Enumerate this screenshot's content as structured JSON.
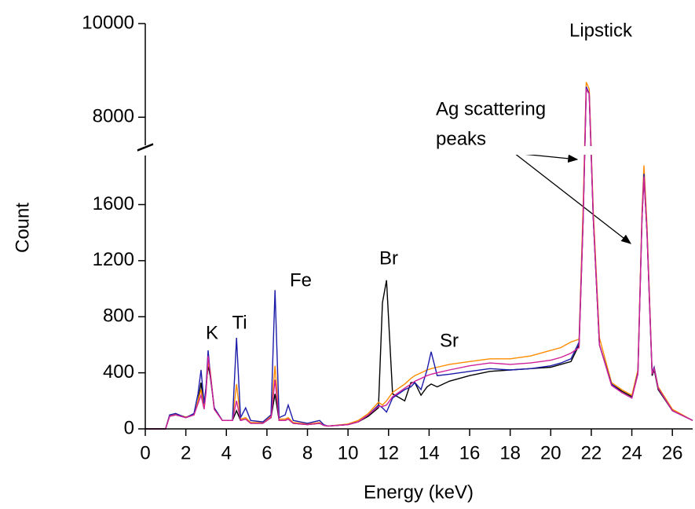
{
  "chart_data": {
    "type": "line",
    "title": "Lipstick",
    "x_label": "Energy (keV)",
    "y_label": "Count",
    "xlim": [
      0,
      27
    ],
    "xticks": [
      0,
      2,
      4,
      6,
      8,
      10,
      12,
      14,
      16,
      18,
      20,
      22,
      24,
      26
    ],
    "ylim": [
      0,
      10000
    ],
    "ybreak": [
      1950,
      7400
    ],
    "yticks": [
      0,
      400,
      800,
      1200,
      1600,
      8000,
      10000
    ],
    "annotations": [
      "K",
      "Ti",
      "Fe",
      "Br",
      "Sr",
      "Ag scattering",
      "peaks"
    ],
    "x": [
      0,
      1,
      1.2,
      1.5,
      2,
      2.4,
      2.6,
      2.75,
      2.9,
      3.0,
      3.1,
      3.2,
      3.4,
      3.8,
      4.3,
      4.5,
      4.7,
      4.95,
      5.2,
      5.8,
      6.2,
      6.4,
      6.6,
      6.9,
      7.05,
      7.3,
      8,
      8.6,
      8.8,
      9,
      10,
      10.5,
      11,
      11.5,
      11.7,
      11.9,
      12.2,
      12.8,
      13.1,
      13.3,
      13.6,
      13.9,
      14.1,
      14.4,
      15,
      16,
      17,
      18,
      19,
      20,
      20.5,
      21,
      21.4,
      21.6,
      21.75,
      21.9,
      22.1,
      22.4,
      23,
      23.5,
      24,
      24.3,
      24.5,
      24.6,
      24.75,
      25,
      25.1,
      25.3,
      26,
      27
    ],
    "series": [
      {
        "color": "#000000",
        "values": [
          0,
          0,
          90,
          100,
          80,
          100,
          200,
          330,
          150,
          300,
          450,
          380,
          150,
          60,
          60,
          130,
          60,
          70,
          40,
          40,
          80,
          250,
          60,
          60,
          70,
          40,
          30,
          40,
          25,
          20,
          30,
          50,
          90,
          150,
          900,
          1060,
          250,
          200,
          330,
          330,
          240,
          300,
          320,
          300,
          340,
          380,
          410,
          420,
          430,
          440,
          460,
          480,
          600,
          1500,
          8600,
          8500,
          1500,
          600,
          320,
          270,
          230,
          400,
          1500,
          1800,
          1400,
          380,
          420,
          280,
          130,
          60
        ]
      },
      {
        "color": "#ff8c00",
        "values": [
          0,
          0,
          95,
          105,
          85,
          100,
          200,
          280,
          150,
          280,
          470,
          420,
          140,
          60,
          60,
          320,
          70,
          80,
          45,
          45,
          90,
          450,
          70,
          70,
          80,
          45,
          35,
          45,
          25,
          20,
          35,
          60,
          110,
          190,
          170,
          200,
          260,
          320,
          360,
          380,
          400,
          420,
          430,
          440,
          460,
          480,
          500,
          500,
          520,
          560,
          580,
          620,
          640,
          1600,
          8750,
          8600,
          1550,
          650,
          330,
          280,
          240,
          420,
          1550,
          1880,
          1450,
          400,
          440,
          300,
          140,
          60
        ]
      },
      {
        "color": "#1c1caa",
        "values": [
          0,
          0,
          100,
          110,
          80,
          110,
          250,
          420,
          180,
          300,
          560,
          400,
          150,
          60,
          60,
          650,
          80,
          150,
          60,
          50,
          100,
          990,
          80,
          100,
          170,
          60,
          40,
          60,
          30,
          20,
          30,
          50,
          100,
          170,
          150,
          120,
          220,
          280,
          300,
          330,
          280,
          420,
          550,
          380,
          390,
          410,
          430,
          420,
          430,
          450,
          470,
          500,
          620,
          1500,
          8650,
          8500,
          1500,
          600,
          320,
          260,
          220,
          400,
          1500,
          1820,
          1400,
          400,
          440,
          290,
          130,
          60
        ]
      },
      {
        "color": "#d0209a",
        "values": [
          0,
          0,
          90,
          100,
          80,
          100,
          180,
          240,
          140,
          260,
          520,
          400,
          140,
          60,
          60,
          200,
          60,
          70,
          40,
          40,
          80,
          350,
          60,
          60,
          70,
          40,
          30,
          40,
          25,
          20,
          30,
          50,
          100,
          160,
          160,
          170,
          230,
          290,
          320,
          340,
          360,
          380,
          390,
          400,
          420,
          450,
          470,
          460,
          470,
          490,
          510,
          540,
          580,
          1500,
          8600,
          8500,
          1500,
          600,
          310,
          260,
          220,
          390,
          1500,
          1800,
          1400,
          390,
          430,
          290,
          130,
          60
        ]
      }
    ]
  }
}
